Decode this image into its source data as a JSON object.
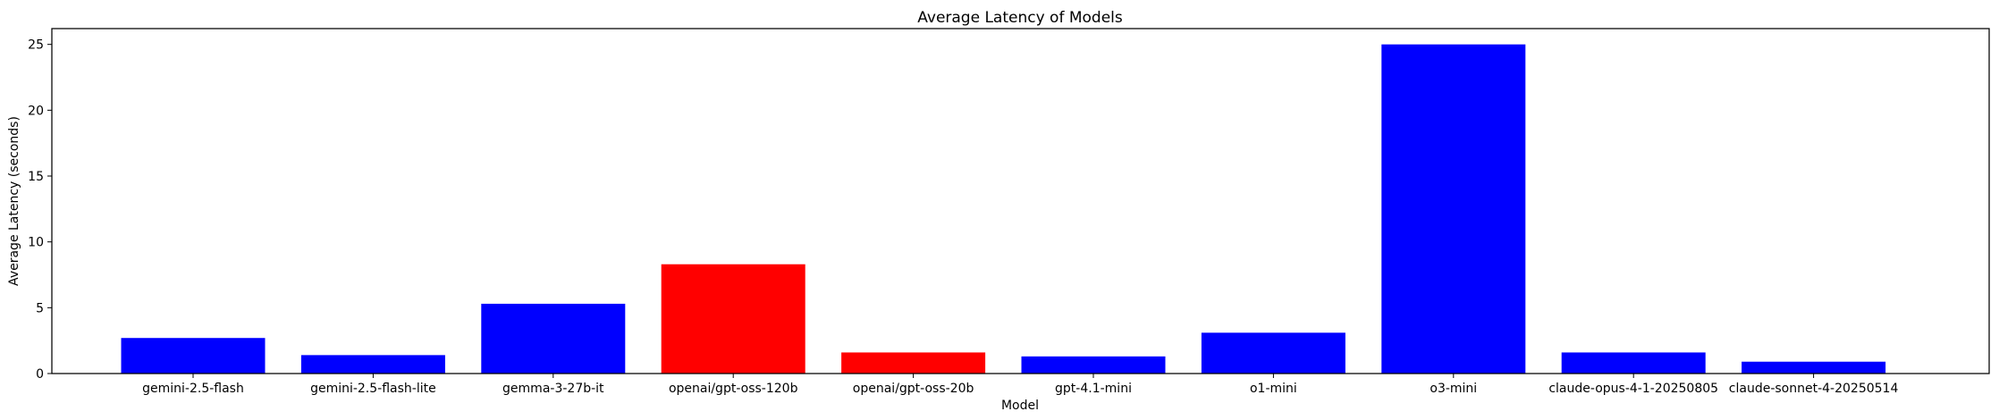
{
  "chart_data": {
    "type": "bar",
    "title": "Average Latency of Models",
    "xlabel": "Model",
    "ylabel": "Average Latency (seconds)",
    "ylim": [
      0,
      26.2
    ],
    "yticks": [
      0,
      5,
      10,
      15,
      20,
      25
    ],
    "grid": false,
    "categories": [
      "gemini-2.5-flash",
      "gemini-2.5-flash-lite",
      "gemma-3-27b-it",
      "openai/gpt-oss-120b",
      "openai/gpt-oss-20b",
      "gpt-4.1-mini",
      "o1-mini",
      "o3-mini",
      "claude-opus-4-1-20250805",
      "claude-sonnet-4-20250514"
    ],
    "values": [
      2.7,
      1.4,
      5.3,
      8.3,
      1.6,
      1.3,
      3.1,
      25.0,
      1.6,
      0.9
    ],
    "colors": [
      "#0000ff",
      "#0000ff",
      "#0000ff",
      "#ff0000",
      "#ff0000",
      "#0000ff",
      "#0000ff",
      "#0000ff",
      "#0000ff",
      "#0000ff"
    ]
  }
}
